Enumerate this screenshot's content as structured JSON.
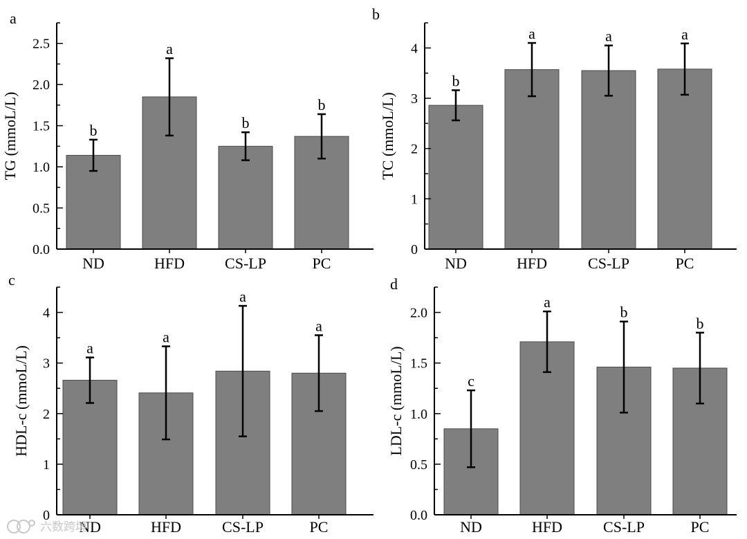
{
  "chart_data": [
    {
      "type": "bar",
      "panel": "a",
      "categories": [
        "ND",
        "HFD",
        "CS-LP",
        "PC"
      ],
      "values": [
        1.14,
        1.85,
        1.25,
        1.37
      ],
      "errors": [
        0.19,
        0.47,
        0.17,
        0.27
      ],
      "sig_labels": [
        "b",
        "a",
        "b",
        "b"
      ],
      "ylabel": "TG (mmoL/L)",
      "xlabel": "",
      "ylim": [
        0,
        2.75
      ],
      "yticks": [
        "0.0",
        "0.5",
        "1.0",
        "1.5",
        "2.0",
        "2.5"
      ],
      "ytick_values": [
        0,
        0.5,
        1.0,
        1.5,
        2.0,
        2.5
      ],
      "minor_step": 0.25
    },
    {
      "type": "bar",
      "panel": "b",
      "categories": [
        "ND",
        "HFD",
        "CS-LP",
        "PC"
      ],
      "values": [
        2.86,
        3.57,
        3.55,
        3.58
      ],
      "errors": [
        0.3,
        0.53,
        0.5,
        0.51
      ],
      "sig_labels": [
        "b",
        "a",
        "a",
        "a"
      ],
      "ylabel": "TC (mmoL/L)",
      "xlabel": "",
      "ylim": [
        0,
        4.5
      ],
      "yticks": [
        "0",
        "1",
        "2",
        "3",
        "4"
      ],
      "ytick_values": [
        0,
        1,
        2,
        3,
        4
      ],
      "minor_step": 0.5
    },
    {
      "type": "bar",
      "panel": "c",
      "categories": [
        "ND",
        "HFD",
        "CS-LP",
        "PC"
      ],
      "values": [
        2.66,
        2.41,
        2.84,
        2.8
      ],
      "errors": [
        0.45,
        0.92,
        1.29,
        0.75
      ],
      "sig_labels": [
        "a",
        "a",
        "a",
        "a"
      ],
      "ylabel": "HDL-c (mmoL/L)",
      "xlabel": "",
      "ylim": [
        0,
        4.5
      ],
      "yticks": [
        "0",
        "1",
        "2",
        "3",
        "4"
      ],
      "ytick_values": [
        0,
        1,
        2,
        3,
        4
      ],
      "minor_step": 0.5
    },
    {
      "type": "bar",
      "panel": "d",
      "categories": [
        "ND",
        "HFD",
        "CS-LP",
        "PC"
      ],
      "values": [
        0.85,
        1.71,
        1.46,
        1.45
      ],
      "errors": [
        0.38,
        0.3,
        0.45,
        0.35
      ],
      "sig_labels": [
        "c",
        "a",
        "b",
        "b"
      ],
      "ylabel": "LDL-c (mmoL/L)",
      "xlabel": "",
      "ylim": [
        0,
        2.25
      ],
      "yticks": [
        "0.0",
        "0.5",
        "1.0",
        "1.5",
        "2.0"
      ],
      "ytick_values": [
        0,
        0.5,
        1.0,
        1.5,
        2.0
      ],
      "minor_step": 0.25
    }
  ],
  "watermark": "六数跨境",
  "colors": {
    "bar_fill": "#7f7f7f",
    "bar_stroke": "#4a4a4a",
    "axis": "#000000"
  }
}
